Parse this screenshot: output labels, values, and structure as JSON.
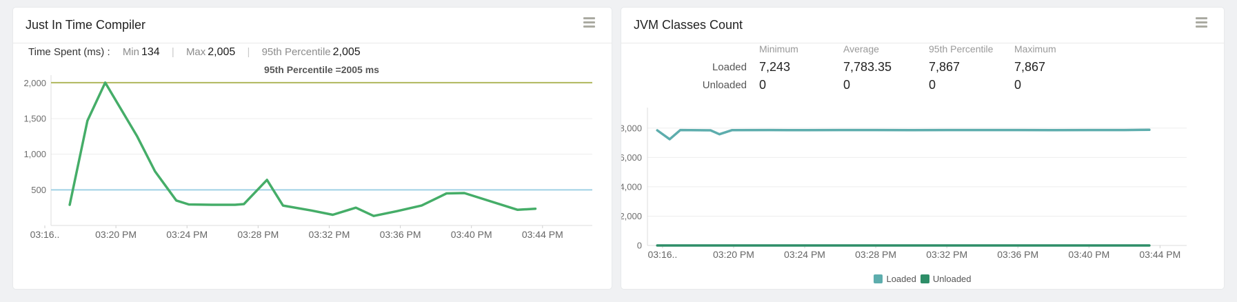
{
  "panels": [
    {
      "title": "Just In Time Compiler",
      "stats": {
        "label": "Time Spent (ms) :",
        "separator": "|",
        "items": [
          {
            "name": "Min",
            "value": "134"
          },
          {
            "name": "Max",
            "value": "2,005"
          },
          {
            "name": "95th Percentile",
            "value": "2,005"
          }
        ]
      }
    },
    {
      "title": "JVM Classes Count",
      "table": {
        "columns": [
          "Minimum",
          "Average",
          "95th Percentile",
          "Maximum"
        ],
        "rows": [
          {
            "label": "Loaded",
            "values": [
              "7,243",
              "7,783.35",
              "7,867",
              "7,867"
            ]
          },
          {
            "label": "Unloaded",
            "values": [
              "0",
              "0",
              "0",
              "0"
            ]
          }
        ]
      },
      "legend": [
        {
          "label": "Loaded",
          "color": "#5dadad"
        },
        {
          "label": "Unloaded",
          "color": "#2e8e68"
        }
      ]
    }
  ],
  "chart_data": [
    {
      "type": "line",
      "title": "95th Percentile =2005 ms",
      "x_axis": {
        "tick_labels": [
          "03:16..",
          "03:20 PM",
          "03:24 PM",
          "03:28 PM",
          "03:32 PM",
          "03:36 PM",
          "03:40 PM",
          "03:44 PM"
        ],
        "tick_minutes": [
          0,
          4,
          8,
          12,
          16,
          20,
          24,
          28
        ],
        "xlim_minutes": [
          0.35,
          30.8
        ]
      },
      "y_axis": {
        "ticks": [
          500,
          1000,
          1500,
          2000
        ],
        "ylim": [
          0,
          2110
        ],
        "grid": true
      },
      "series": [
        {
          "name": "Time Spent (ms)",
          "color": "#45ad68",
          "x_minutes": [
            1.4,
            2.4,
            3.4,
            5.2,
            6.2,
            7.4,
            8.1,
            9.4,
            10.7,
            11.2,
            12.5,
            13.4,
            15.0,
            16.2,
            17.5,
            18.5,
            19.8,
            21.2,
            22.6,
            23.6,
            26.6,
            27.6
          ],
          "values": [
            290,
            1470,
            2005,
            1250,
            760,
            350,
            295,
            290,
            290,
            300,
            640,
            280,
            210,
            150,
            250,
            134,
            200,
            280,
            450,
            455,
            220,
            235
          ]
        }
      ],
      "reference_lines": [
        {
          "name": "95th-percentile-line",
          "value": 2005,
          "color": "#b0b75c"
        },
        {
          "name": "threshold-line",
          "value": 500,
          "color": "#9fd0e5"
        }
      ],
      "summary": {
        "min": 134,
        "max": 2005,
        "p95": 2005
      }
    },
    {
      "type": "line",
      "title": "",
      "x_axis": {
        "tick_labels": [
          "03:16..",
          "03:20 PM",
          "03:24 PM",
          "03:28 PM",
          "03:32 PM",
          "03:36 PM",
          "03:40 PM",
          "03:44 PM"
        ],
        "tick_minutes": [
          0,
          4,
          8,
          12,
          16,
          20,
          24,
          28
        ],
        "xlim_minutes": [
          -0.85,
          29.5
        ]
      },
      "y_axis": {
        "ticks": [
          0,
          2000,
          4000,
          6000,
          8000
        ],
        "ylim": [
          0,
          9400
        ],
        "grid": true
      },
      "series": [
        {
          "name": "Loaded",
          "color": "#5dadad",
          "x_minutes": [
            -0.3,
            0.4,
            1.0,
            2.7,
            3.2,
            3.9,
            6,
            8,
            10,
            12,
            14,
            16,
            18,
            20,
            22,
            24,
            26,
            27.4
          ],
          "values": [
            7850,
            7243,
            7867,
            7850,
            7580,
            7860,
            7867,
            7860,
            7867,
            7867,
            7860,
            7867,
            7867,
            7867,
            7860,
            7867,
            7867,
            7880
          ]
        },
        {
          "name": "Unloaded",
          "color": "#2e8e68",
          "x_minutes": [
            -0.3,
            5,
            10,
            15,
            20,
            25,
            27.4
          ],
          "values": [
            0,
            0,
            0,
            0,
            0,
            0,
            0
          ]
        }
      ],
      "summary": {
        "Loaded": {
          "min": 7243,
          "avg": 7783.35,
          "p95": 7867,
          "max": 7867
        },
        "Unloaded": {
          "min": 0,
          "avg": 0,
          "p95": 0,
          "max": 0
        }
      }
    }
  ]
}
